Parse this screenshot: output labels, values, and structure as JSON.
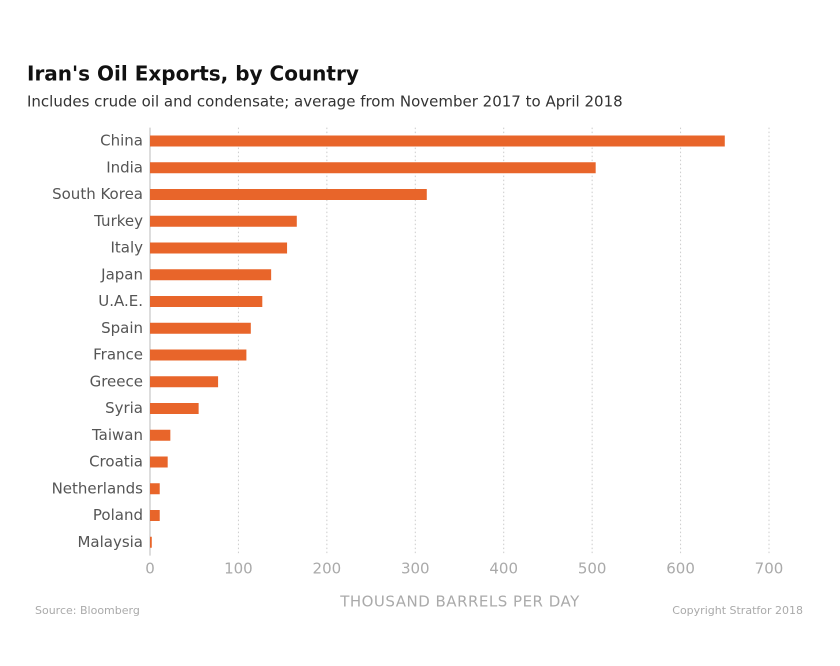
{
  "chart_data": {
    "type": "bar",
    "orientation": "horizontal",
    "title": "Iran's Oil Exports, by Country",
    "subtitle": "Includes crude oil and condensate; average from November 2017 to April 2018",
    "categories": [
      "China",
      "India",
      "South Korea",
      "Turkey",
      "Italy",
      "Japan",
      "U.A.E.",
      "Spain",
      "France",
      "Greece",
      "Syria",
      "Taiwan",
      "Croatia",
      "Netherlands",
      "Poland",
      "Malaysia"
    ],
    "values": [
      650,
      504,
      313,
      166,
      155,
      137,
      127,
      114,
      109,
      77,
      55,
      23,
      20,
      11,
      11,
      2
    ],
    "color": "#e8652a",
    "xlabel": "THOUSAND BARRELS PER DAY",
    "xlim": [
      0,
      700
    ],
    "xticks": [
      0,
      100,
      200,
      300,
      400,
      500,
      600,
      700
    ],
    "grid": true,
    "source": "Source: Bloomberg",
    "credit": "Copyright Stratfor 2018"
  }
}
